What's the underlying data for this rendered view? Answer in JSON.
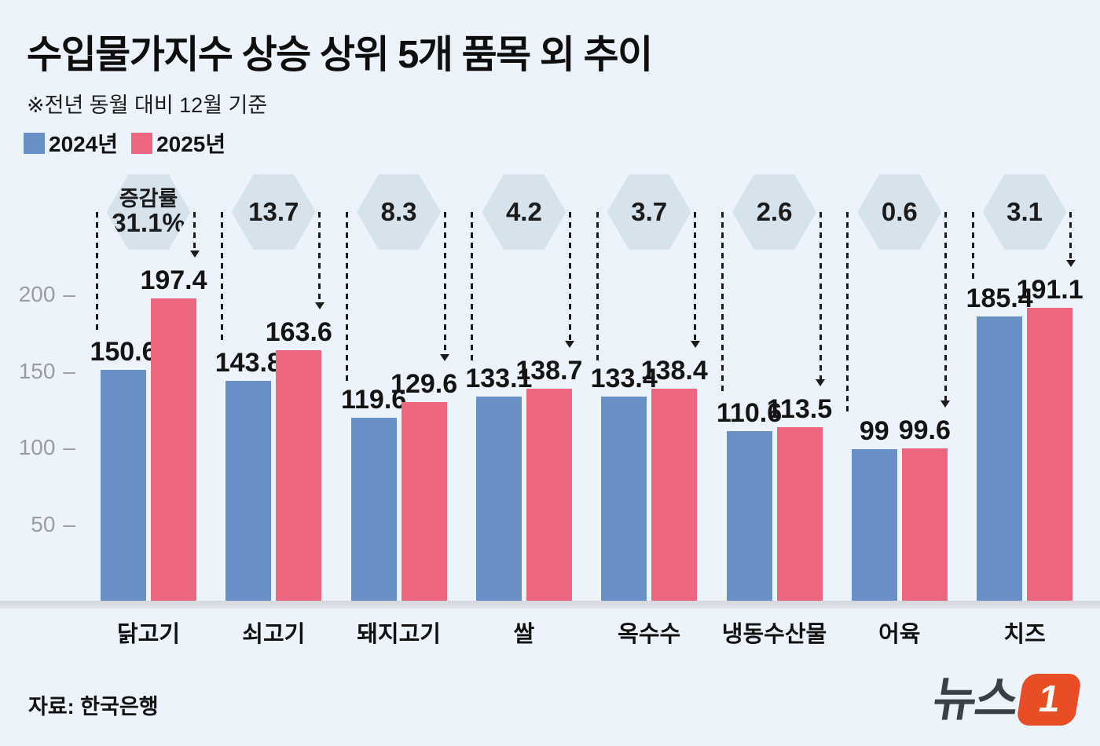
{
  "title": "수입물가지수 상승 상위 5개 품목 외 추이",
  "subtitle": "※전년 동월 대비 12월 기준",
  "legend": [
    {
      "label": "2024년",
      "color": "#688fc6"
    },
    {
      "label": "2025년",
      "color": "#ec6680"
    }
  ],
  "source": "자료: 한국은행",
  "logo": {
    "text": "뉴스",
    "badge": "1",
    "badge_color": "#e84e25"
  },
  "colors": {
    "background": "#edf3fa",
    "bar_2024": "#688fc6",
    "bar_2025": "#ec6680",
    "hexagon": "#d6e2ec",
    "baseline": "#d9dde1",
    "axis_text": "#9c9ca0"
  },
  "chart_data": {
    "type": "bar",
    "title": "수입물가지수 상승 상위 5개 품목 외 추이",
    "note": "※전년 동월 대비 12월 기준",
    "categories": [
      "닭고기",
      "쇠고기",
      "돼지고기",
      "쌀",
      "옥수수",
      "냉동수산물",
      "어육",
      "치즈"
    ],
    "series": [
      {
        "name": "2024년",
        "color": "#688fc6",
        "values": [
          150.6,
          143.8,
          119.6,
          133.1,
          133.4,
          110.6,
          99,
          185.4
        ],
        "labels": [
          "150.6",
          "143.8",
          "119.6",
          "133.1",
          "133.4",
          "110.6",
          "99",
          "185.4"
        ]
      },
      {
        "name": "2025년",
        "color": "#ec6680",
        "values": [
          197.4,
          163.6,
          129.6,
          138.7,
          138.4,
          113.5,
          99.6,
          191.1
        ],
        "labels": [
          "197.4",
          "163.6",
          "129.6",
          "138.7",
          "138.4",
          "113.5",
          "99.6",
          "191.1"
        ]
      }
    ],
    "change_badges": [
      {
        "prefix": "증감률",
        "value": "31.1%"
      },
      {
        "prefix": "",
        "value": "13.7"
      },
      {
        "prefix": "",
        "value": "8.3"
      },
      {
        "prefix": "",
        "value": "4.2"
      },
      {
        "prefix": "",
        "value": "3.7"
      },
      {
        "prefix": "",
        "value": "2.6"
      },
      {
        "prefix": "",
        "value": "0.6"
      },
      {
        "prefix": "",
        "value": "3.1"
      }
    ],
    "yticks": [
      50,
      100,
      150,
      200
    ],
    "ylim": [
      0,
      230
    ],
    "grid": false,
    "legend_position": "top-left",
    "xlabel": "",
    "ylabel": ""
  }
}
